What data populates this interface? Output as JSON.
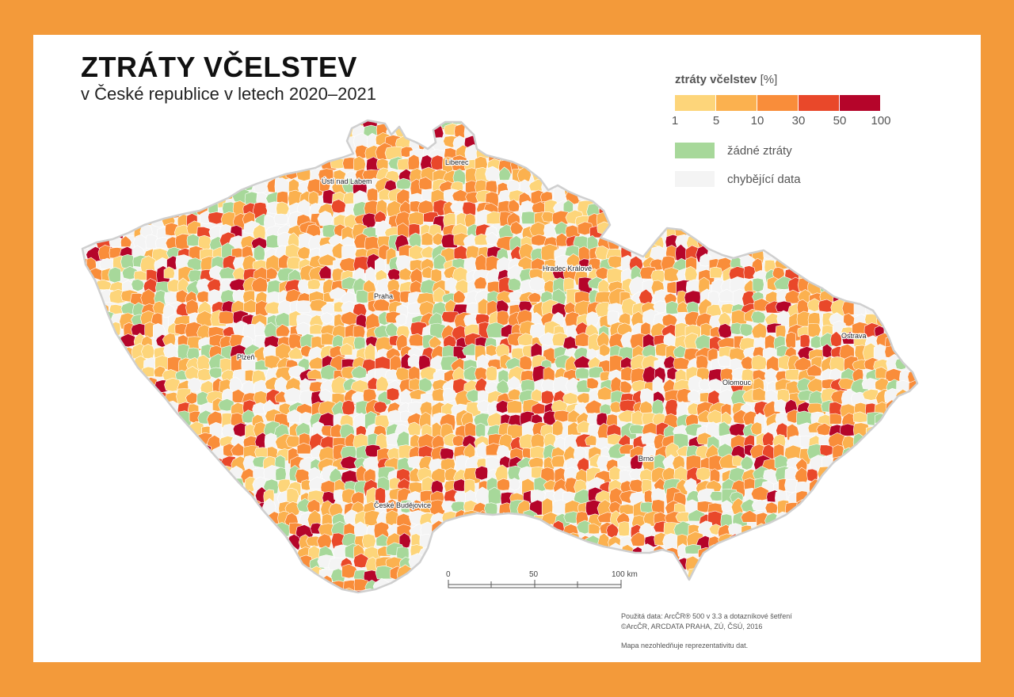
{
  "title": "ZTRÁTY VČELSTEV",
  "subtitle": "v České republice v letech 2020–2021",
  "legend": {
    "title": "ztráty včelstev",
    "unit": "[%]",
    "classes": [
      {
        "from": 1,
        "to": 5,
        "color": "#fdd57a"
      },
      {
        "from": 5,
        "to": 10,
        "color": "#fbb14f"
      },
      {
        "from": 10,
        "to": 30,
        "color": "#f98d3a"
      },
      {
        "from": 30,
        "to": 50,
        "color": "#e9482a"
      },
      {
        "from": 50,
        "to": 100,
        "color": "#b5052a"
      }
    ],
    "breaks": [
      "1",
      "5",
      "10",
      "30",
      "50",
      "100"
    ],
    "no_loss_label": "žádné ztráty",
    "no_loss_color": "#a7d89a",
    "missing_label": "chybějící data",
    "missing_color": "#f4f4f4"
  },
  "cities": [
    {
      "name": "Liberec"
    },
    {
      "name": "Ústí nad Labem"
    },
    {
      "name": "Hradec Králové"
    },
    {
      "name": "Praha"
    },
    {
      "name": "Plzeň"
    },
    {
      "name": "Olomouc"
    },
    {
      "name": "Ostrava"
    },
    {
      "name": "Brno"
    },
    {
      "name": "České Budějovice"
    }
  ],
  "scale_bar": {
    "labels": [
      "0",
      "50",
      "100 km"
    ]
  },
  "source": {
    "line1": "Použitá data: ArcČR® 500 v 3.3 a dotazníkové šetření",
    "line2": "©ArcČR, ARCDATA PRAHA, ZÚ, ČSÚ, 2016"
  },
  "note": "Mapa nezohledňuje reprezentativitu dat.",
  "colors": {
    "frame": "#f39a3a",
    "card": "#ffffff",
    "border": "#cfcfcf"
  }
}
